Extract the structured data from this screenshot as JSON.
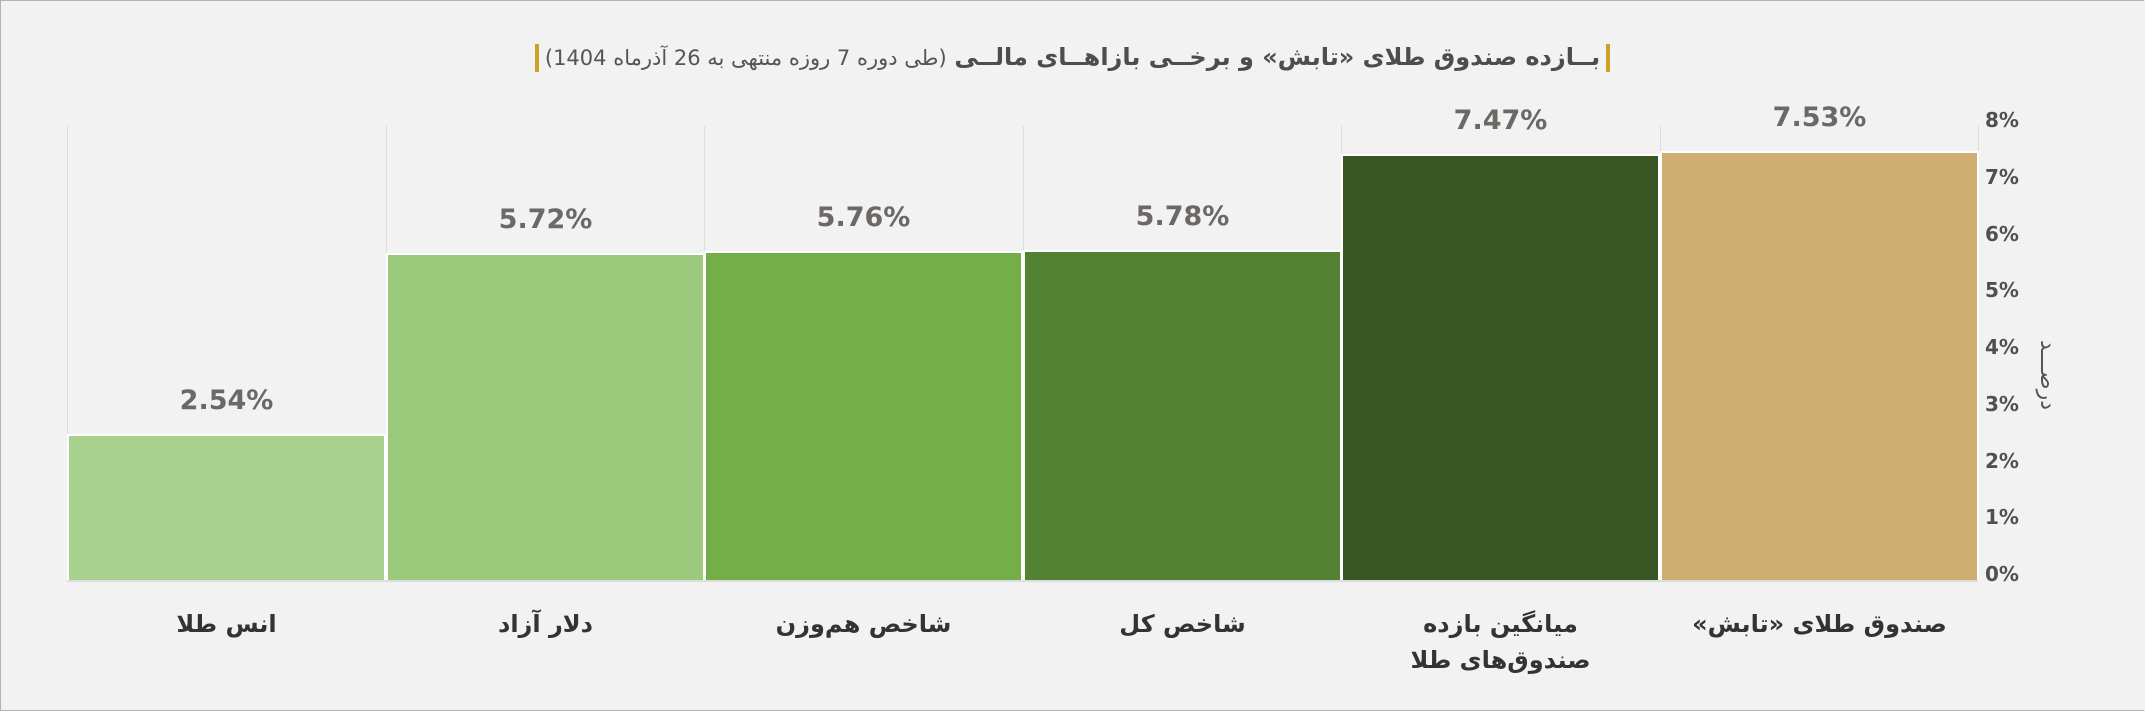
{
  "title": {
    "main": "بــازده صندوق طلای «تابش» و برخــی بازاهــای مالــی",
    "sub": "(طی دوره 7 روزه منتهی به 26 آذرماه 1404)",
    "accent_color": "#c9a227"
  },
  "axis": {
    "ylabel": "درصـــد",
    "yticks": [
      "8%",
      "7%",
      "6%",
      "5%",
      "4%",
      "3%",
      "2%",
      "1%",
      "0%"
    ]
  },
  "bars": [
    {
      "label": "انس طلا",
      "value_label": "2.54%",
      "value": 2.54,
      "color": "#a8d18d"
    },
    {
      "label": "دلار آزاد",
      "value_label": "5.72%",
      "value": 5.72,
      "color": "#9bca7d"
    },
    {
      "label": "شاخص هم‌وزن",
      "value_label": "5.76%",
      "value": 5.76,
      "color": "#73ae48"
    },
    {
      "label": "شاخص کل",
      "value_label": "5.78%",
      "value": 5.78,
      "color": "#548235"
    },
    {
      "label": "میانگین بازده صندوق‌های طلا",
      "value_label": "7.47%",
      "value": 7.47,
      "color": "#385723"
    },
    {
      "label": "صندوق طلای «تابش»",
      "value_label": "7.53%",
      "value": 7.53,
      "color": "#cfae72"
    }
  ],
  "chart_data": {
    "type": "bar",
    "title": "بازده صندوق طلای «تابش» و برخی بازارهای مالی (طی دوره 7 روزه منتهی به 26 آذرماه 1404)",
    "categories": [
      "صندوق طلای «تابش»",
      "میانگین بازده صندوق‌های طلا",
      "شاخص کل",
      "شاخص هم‌وزن",
      "دلار آزاد",
      "انس طلا"
    ],
    "values": [
      7.53,
      7.47,
      5.78,
      5.76,
      5.72,
      2.54
    ],
    "data_labels": [
      "7.53%",
      "7.47%",
      "5.78%",
      "5.76%",
      "5.72%",
      "2.54%"
    ],
    "xlabel": "",
    "ylabel": "درصد",
    "ylim": [
      0,
      8
    ],
    "yticks": [
      "0%",
      "1%",
      "2%",
      "3%",
      "4%",
      "5%",
      "6%",
      "7%",
      "8%"
    ],
    "y_axis_position": "right",
    "grid": "vertical separators",
    "legend": "none",
    "colors": [
      "#cfae72",
      "#385723",
      "#548235",
      "#73ae48",
      "#9bca7d",
      "#a8d18d"
    ]
  }
}
